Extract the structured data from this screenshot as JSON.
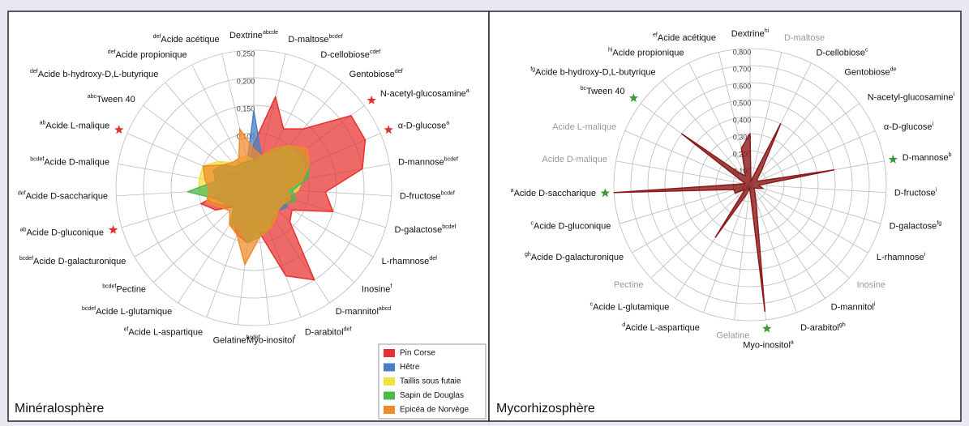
{
  "chart_data": [
    {
      "type": "radar",
      "title": "Minéralosphère",
      "categories": [
        "Dextrine",
        "D-maltose",
        "D-cellobiose",
        "Gentobiose",
        "N-acetyl-glucosamine",
        "α-D-glucose",
        "D-mannose",
        "D-fructose",
        "D-galactose",
        "L-rhamnose",
        "Inosine",
        "D-mannitol",
        "D-arabitol",
        "Myo-inositol",
        "Gelatine",
        "Acide L-aspartique",
        "Acide L-glutamique",
        "Pectine",
        "Acide D-galacturonique",
        "Acide D-gluconique",
        "Acide D-saccharique",
        "Acide D-malique",
        "Acide L-malique",
        "Tween 40",
        "Acide b-hydroxy-D,L-butyrique",
        "Acide propionique",
        "Acide acétique"
      ],
      "sups": [
        "abcde",
        "bcdef",
        "cdef",
        "def",
        "a",
        "a",
        "bcdef",
        "bcdef",
        "bcdef",
        "def",
        "f",
        "abcd",
        "def",
        "f",
        "bcdef",
        "ef",
        "bcdef",
        "bcdef",
        "bcdef",
        "ab",
        "def",
        "bcdef",
        "ab",
        "abc",
        "def",
        "def",
        "def"
      ],
      "starred": [
        false,
        false,
        false,
        false,
        true,
        true,
        false,
        false,
        false,
        false,
        false,
        false,
        false,
        false,
        false,
        false,
        false,
        false,
        false,
        true,
        false,
        false,
        true,
        false,
        false,
        false,
        false
      ],
      "star_color": "#e03030",
      "rlim": [
        0,
        0.25
      ],
      "rticks": [
        {
          "value": 0,
          "label": "0,000"
        },
        {
          "value": 0.05,
          "label": "0,050"
        },
        {
          "value": 0.1,
          "label": "0,100"
        },
        {
          "value": 0.15,
          "label": "0,150"
        },
        {
          "value": 0.2,
          "label": "0,200"
        },
        {
          "value": 0.25,
          "label": "0,250"
        }
      ],
      "legend": "lower right",
      "series": [
        {
          "name": "Pin Corse",
          "color": "#e8302e",
          "values": [
            0.08,
            0.17,
            0.12,
            0.14,
            0.22,
            0.22,
            0.2,
            0.13,
            0.15,
            0.08,
            0.09,
            0.2,
            0.17,
            0.08,
            0.1,
            0.09,
            0.07,
            0.05,
            0.08,
            0.1,
            0.05,
            0.06,
            0.08,
            0.05,
            0.04,
            0.04,
            0.04
          ]
        },
        {
          "name": "Hêtre",
          "color": "#4a7fc6",
          "values": [
            0.14,
            0.06,
            0.05,
            0.05,
            0.07,
            0.06,
            0.06,
            0.07,
            0.06,
            0.07,
            0.06,
            0.05,
            0.05,
            0.06,
            0.05,
            0.06,
            0.06,
            0.05,
            0.06,
            0.07,
            0.06,
            0.06,
            0.06,
            0.05,
            0.04,
            0.04,
            0.05
          ]
        },
        {
          "name": "Taillis sous futaie",
          "color": "#f0e040",
          "values": [
            0.05,
            0.06,
            0.07,
            0.1,
            0.1,
            0.1,
            0.09,
            0.08,
            0.06,
            0.06,
            0.06,
            0.06,
            0.08,
            0.08,
            0.1,
            0.08,
            0.07,
            0.05,
            0.06,
            0.08,
            0.1,
            0.1,
            0.1,
            0.08,
            0.06,
            0.06,
            0.06
          ]
        },
        {
          "name": "Sapin de Douglas",
          "color": "#4cb850",
          "values": [
            0.05,
            0.06,
            0.08,
            0.1,
            0.11,
            0.11,
            0.1,
            0.07,
            0.08,
            0.06,
            0.06,
            0.07,
            0.08,
            0.09,
            0.1,
            0.08,
            0.08,
            0.05,
            0.06,
            0.07,
            0.12,
            0.07,
            0.08,
            0.07,
            0.05,
            0.05,
            0.05
          ]
        },
        {
          "name": "Epicéa de Norvège",
          "color": "#f08a2a",
          "values": [
            0.07,
            0.06,
            0.08,
            0.1,
            0.12,
            0.11,
            0.09,
            0.06,
            0.07,
            0.06,
            0.06,
            0.07,
            0.08,
            0.09,
            0.14,
            0.09,
            0.08,
            0.06,
            0.07,
            0.09,
            0.08,
            0.09,
            0.1,
            0.07,
            0.06,
            0.06,
            0.11
          ]
        }
      ]
    },
    {
      "type": "radar",
      "title": "Mycorhizosphère",
      "categories": [
        "Dextrine",
        "D-maltose",
        "D-cellobiose",
        "Gentobiose",
        "N-acetyl-glucosamine",
        "α-D-glucose",
        "D-mannose",
        "D-fructose",
        "D-galactose",
        "L-rhamnose",
        "Inosine",
        "D-mannitol",
        "D-arabitol",
        "Myo-inositol",
        "Gelatine",
        "Acide L-aspartique",
        "Acide L-glutamique",
        "Pectine",
        "Acide D-galacturonique",
        "Acide D-gluconique",
        "Acide D-saccharique",
        "Acide D-malique",
        "Acide L-malique",
        "Tween 40",
        "Acide b-hydroxy-D,L-butyrique",
        "Acide propionique",
        "Acide acétique"
      ],
      "sups": [
        "hi",
        null,
        "c",
        "de",
        "i",
        "i",
        "b",
        "i",
        "fg",
        "i",
        null,
        "i",
        "gh",
        "a",
        null,
        "d",
        "c",
        null,
        "gh",
        "c",
        "a",
        null,
        null,
        "bc",
        "fg",
        "hi",
        "ef"
      ],
      "muted": [
        false,
        true,
        false,
        false,
        false,
        false,
        false,
        false,
        false,
        false,
        true,
        false,
        false,
        false,
        true,
        false,
        false,
        true,
        false,
        false,
        false,
        true,
        true,
        false,
        false,
        false,
        false
      ],
      "starred": [
        false,
        false,
        false,
        false,
        false,
        false,
        true,
        false,
        false,
        false,
        false,
        false,
        false,
        true,
        false,
        false,
        false,
        false,
        false,
        false,
        true,
        false,
        false,
        true,
        false,
        false,
        false
      ],
      "star_color": "#3a9a3a",
      "rlim": [
        0,
        0.8
      ],
      "rticks": [
        {
          "value": 0,
          "label": "0,000"
        },
        {
          "value": 0.1,
          "label": "0,100"
        },
        {
          "value": 0.2,
          "label": "0,200"
        },
        {
          "value": 0.3,
          "label": "0,300"
        },
        {
          "value": 0.4,
          "label": "0,400"
        },
        {
          "value": 0.5,
          "label": "0,500"
        },
        {
          "value": 0.6,
          "label": "0,600"
        },
        {
          "value": 0.7,
          "label": "0,700"
        },
        {
          "value": 0.8,
          "label": "0,800"
        }
      ],
      "series": [
        {
          "color": "#8b1a1a",
          "values": [
            0.3,
            0.02,
            0.4,
            0.1,
            0.05,
            0.05,
            0.5,
            0.05,
            0.08,
            0.04,
            0.03,
            0.05,
            0.1,
            0.75,
            0.02,
            0.06,
            0.37,
            0.04,
            0.1,
            0.1,
            0.8,
            0.03,
            0.05,
            0.5,
            0.08,
            0.06,
            0.22
          ]
        }
      ]
    }
  ]
}
